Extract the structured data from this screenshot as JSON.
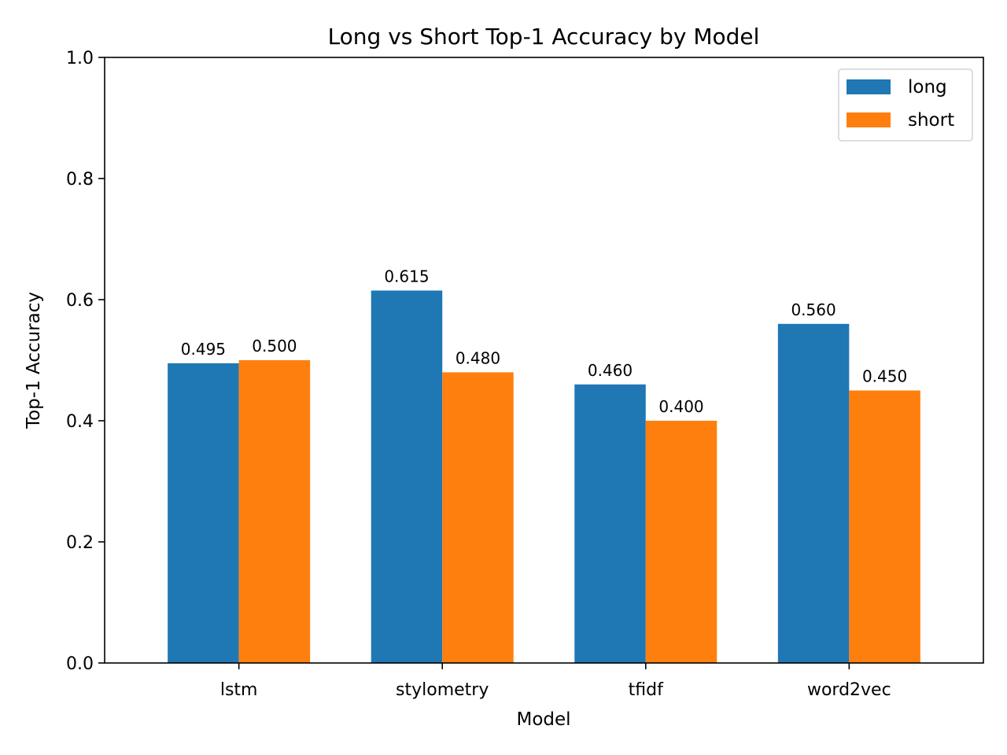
{
  "chart_data": {
    "type": "bar",
    "title": "Long vs Short Top-1 Accuracy by Model",
    "xlabel": "Model",
    "ylabel": "Top-1 Accuracy",
    "categories": [
      "lstm",
      "stylometry",
      "tfidf",
      "word2vec"
    ],
    "series": [
      {
        "name": "long",
        "color": "#1f77b4",
        "values": [
          0.495,
          0.615,
          0.46,
          0.56
        ]
      },
      {
        "name": "short",
        "color": "#ff7f0e",
        "values": [
          0.5,
          0.48,
          0.4,
          0.45
        ]
      }
    ],
    "ylim": [
      0,
      1.0
    ],
    "yticks": [
      0.0,
      0.2,
      0.4,
      0.6,
      0.8,
      1.0
    ],
    "value_label_decimals": 3,
    "ytick_decimals": 1,
    "grid": false,
    "legend_position": "top-right"
  }
}
